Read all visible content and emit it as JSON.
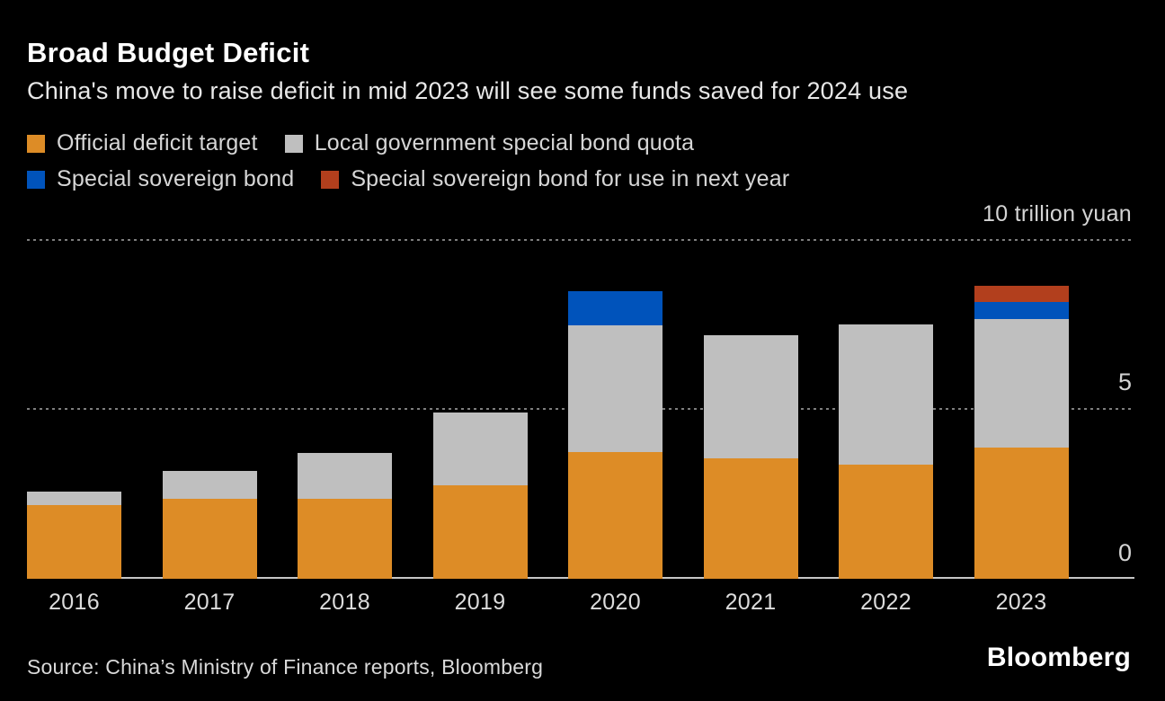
{
  "header": {
    "title": "Broad Budget Deficit",
    "subtitle": "China's move to raise deficit in mid 2023 will see some funds saved for 2024 use"
  },
  "footer": {
    "source": "Source: China’s Ministry of Finance reports, Bloomberg",
    "brand": "Bloomberg"
  },
  "colors": {
    "background": "#000000",
    "official_deficit_target": "#dd8c26",
    "local_government_special_bond_quota": "#bfbfbf",
    "special_sovereign_bond": "#0053bb",
    "special_sovereign_bond_next_year": "#b23f1d",
    "gridline": "#7e7e7e",
    "axis_line": "#c6c6c6"
  },
  "chart_data": {
    "type": "bar",
    "stacked": true,
    "title": "Broad Budget Deficit",
    "subtitle": "China's move to raise deficit in mid 2023 will see some funds saved for 2024 use",
    "unit_label": "10 trillion yuan",
    "xlabel": "",
    "ylabel": "trillion yuan",
    "ylim": [
      0,
      10
    ],
    "yticks": [
      0,
      5,
      10
    ],
    "grid": "horizontal-dotted",
    "legend_position": "top",
    "categories": [
      "2016",
      "2017",
      "2018",
      "2019",
      "2020",
      "2021",
      "2022",
      "2023"
    ],
    "series": [
      {
        "name": "Official deficit target",
        "color": "#dd8c26",
        "values": [
          2.18,
          2.38,
          2.38,
          2.76,
          3.76,
          3.57,
          3.37,
          3.88
        ]
      },
      {
        "name": "Local government special bond quota",
        "color": "#bfbfbf",
        "values": [
          0.4,
          0.8,
          1.35,
          2.15,
          3.75,
          3.65,
          4.15,
          3.8
        ]
      },
      {
        "name": "Special sovereign bond",
        "color": "#0053bb",
        "values": [
          0,
          0,
          0,
          0,
          1.0,
          0,
          0,
          0.5
        ]
      },
      {
        "name": "Special sovereign bond for use in next year",
        "color": "#b23f1d",
        "values": [
          0,
          0,
          0,
          0,
          0,
          0,
          0,
          0.5
        ]
      }
    ]
  }
}
